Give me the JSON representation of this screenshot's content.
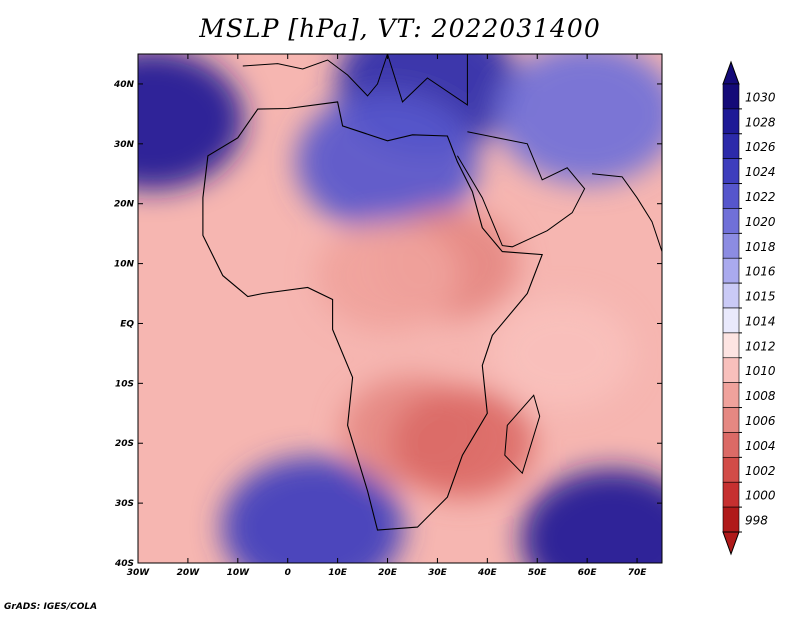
{
  "header": {
    "title": "MSLP [hPa], VT: 2022031400"
  },
  "footer": {
    "credit": "GrADS: IGES/COLA"
  },
  "map": {
    "projection": "lat-lon",
    "lon_range": [
      -30,
      75
    ],
    "lat_range": [
      -40,
      45
    ],
    "lon_ticks": [
      {
        "value": -30,
        "label": "30W"
      },
      {
        "value": -20,
        "label": "20W"
      },
      {
        "value": -10,
        "label": "10W"
      },
      {
        "value": 0,
        "label": "0"
      },
      {
        "value": 10,
        "label": "10E"
      },
      {
        "value": 20,
        "label": "20E"
      },
      {
        "value": 30,
        "label": "30E"
      },
      {
        "value": 40,
        "label": "40E"
      },
      {
        "value": 50,
        "label": "50E"
      },
      {
        "value": 60,
        "label": "60E"
      },
      {
        "value": 70,
        "label": "70E"
      }
    ],
    "lat_ticks": [
      {
        "value": 40,
        "label": "40N"
      },
      {
        "value": 30,
        "label": "30N"
      },
      {
        "value": 20,
        "label": "20N"
      },
      {
        "value": 10,
        "label": "10N"
      },
      {
        "value": 0,
        "label": "EQ"
      },
      {
        "value": -10,
        "label": "10S"
      },
      {
        "value": -20,
        "label": "20S"
      },
      {
        "value": -30,
        "label": "30S"
      },
      {
        "value": -40,
        "label": "40S"
      }
    ],
    "pressure_features": [
      {
        "type": "high",
        "lon": -27,
        "lat": 34,
        "value": 1028
      },
      {
        "type": "high",
        "lon": 28,
        "lat": 40,
        "value": 1026
      },
      {
        "type": "high",
        "lon": 20,
        "lat": 27,
        "value": 1022
      },
      {
        "type": "high",
        "lon": 5,
        "lat": -34,
        "value": 1024
      },
      {
        "type": "high",
        "lon": 65,
        "lat": -36,
        "value": 1028
      },
      {
        "type": "high",
        "lon": 60,
        "lat": 35,
        "value": 1020
      },
      {
        "type": "low",
        "lon": 32,
        "lat": 10,
        "value": 1006
      },
      {
        "type": "low",
        "lon": 25,
        "lat": -18,
        "value": 1006
      },
      {
        "type": "low",
        "lon": 35,
        "lat": -20,
        "value": 1004
      },
      {
        "type": "low",
        "lon": 20,
        "lat": 8,
        "value": 1008
      },
      {
        "type": "low",
        "lon": 55,
        "lat": -5,
        "value": 1009
      }
    ]
  },
  "colorbar": {
    "levels": [
      {
        "label": "1030",
        "color": "#140a78"
      },
      {
        "label": "1028",
        "color": "#1e1a96"
      },
      {
        "label": "1026",
        "color": "#2c2aaa"
      },
      {
        "label": "1024",
        "color": "#3e3ebd"
      },
      {
        "label": "1022",
        "color": "#5656cc"
      },
      {
        "label": "1020",
        "color": "#7070d8"
      },
      {
        "label": "1018",
        "color": "#8c8ce2"
      },
      {
        "label": "1016",
        "color": "#aaaaee"
      },
      {
        "label": "1015",
        "color": "#cacaf6"
      },
      {
        "label": "1014",
        "color": "#e9e9fc"
      },
      {
        "label": "1012",
        "color": "#fde4e2"
      },
      {
        "label": "1010",
        "color": "#f8c0bc"
      },
      {
        "label": "1008",
        "color": "#f0a29c"
      },
      {
        "label": "1006",
        "color": "#e58882"
      },
      {
        "label": "1004",
        "color": "#db6a66"
      },
      {
        "label": "1002",
        "color": "#d24c48"
      },
      {
        "label": "1000",
        "color": "#c63030"
      },
      {
        "label": "998",
        "color": "#b01a1a"
      }
    ]
  }
}
